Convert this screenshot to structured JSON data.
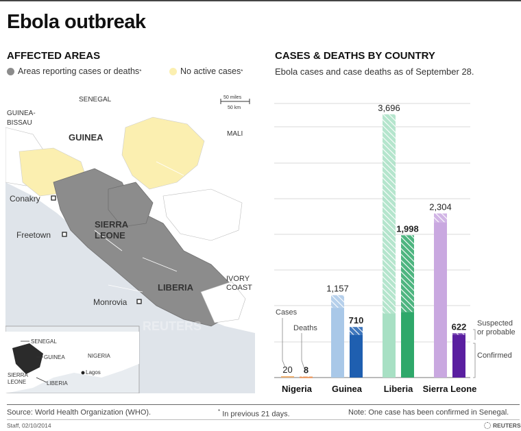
{
  "title": "Ebola outbreak",
  "map": {
    "heading": "AFFECTED AREAS",
    "legend": [
      {
        "label": "Areas reporting cases or deaths",
        "note": "*",
        "color": "#8c8c8c"
      },
      {
        "label": "No active cases",
        "note": "*",
        "color": "#fbefb0"
      }
    ],
    "scale": {
      "miles": "50 miles",
      "km": "50 km"
    },
    "labels": {
      "senegal": "SENEGAL",
      "guinea_bissau_1": "GUINEA-",
      "guinea_bissau_2": "BISSAU",
      "mali": "MALI",
      "guinea": "GUINEA",
      "conakry": "Conakry",
      "freetown": "Freetown",
      "sierra": "SIERRA",
      "leone": "LEONE",
      "liberia": "LIBERIA",
      "ivory": "IVORY",
      "coast": "COAST",
      "monrovia": "Monrovia"
    },
    "inset": {
      "senegal": "SENEGAL",
      "guinea": "GUINEA",
      "nigeria": "NIGERIA",
      "lagos": "Lagos",
      "sierra": "SIERRA",
      "leone": "LEONE",
      "liberia": "LIBERIA"
    },
    "watermark": "REUTERS"
  },
  "chart": {
    "heading": "CASES & DEATHS BY COUNTRY",
    "subtitle": "Ebola cases and case deaths as of September 28.",
    "legend": {
      "cases": "Cases",
      "deaths": "Deaths",
      "suspected_1": "Suspected",
      "suspected_2": "or probable",
      "confirmed": "Confirmed"
    }
  },
  "chart_data": {
    "type": "bar",
    "categories": [
      "Nigeria",
      "Guinea",
      "Liberia",
      "Sierra Leone"
    ],
    "series": [
      {
        "name": "Cases",
        "values": [
          20,
          1157,
          3696,
          2304
        ],
        "confirmed": [
          19,
          980,
          900,
          2180
        ]
      },
      {
        "name": "Deaths",
        "values": [
          8,
          710,
          1998,
          622
        ],
        "confirmed": [
          7,
          600,
          920,
          600
        ]
      }
    ],
    "stack_labels": [
      "Confirmed",
      "Suspected or probable"
    ],
    "ylim": [
      0,
      3800
    ],
    "grid": true,
    "colors": {
      "nigeria": [
        "#f0b070",
        "#e8894a"
      ],
      "guinea": [
        "#a9c8e8",
        "#1f5fb0"
      ],
      "liberia": [
        "#a8e0c4",
        "#2fa86a"
      ],
      "sierra_leone": [
        "#c9a8e0",
        "#5a1fa0"
      ]
    }
  },
  "footer": {
    "source": "Source: World Health Organization (WHO).",
    "note_mark": "*",
    "note": "In previous 21 days.",
    "senegal_note": "Note: One case has been confirmed in Senegal.",
    "staff": "Staff, 02/10/2014",
    "brand": "REUTERS"
  }
}
